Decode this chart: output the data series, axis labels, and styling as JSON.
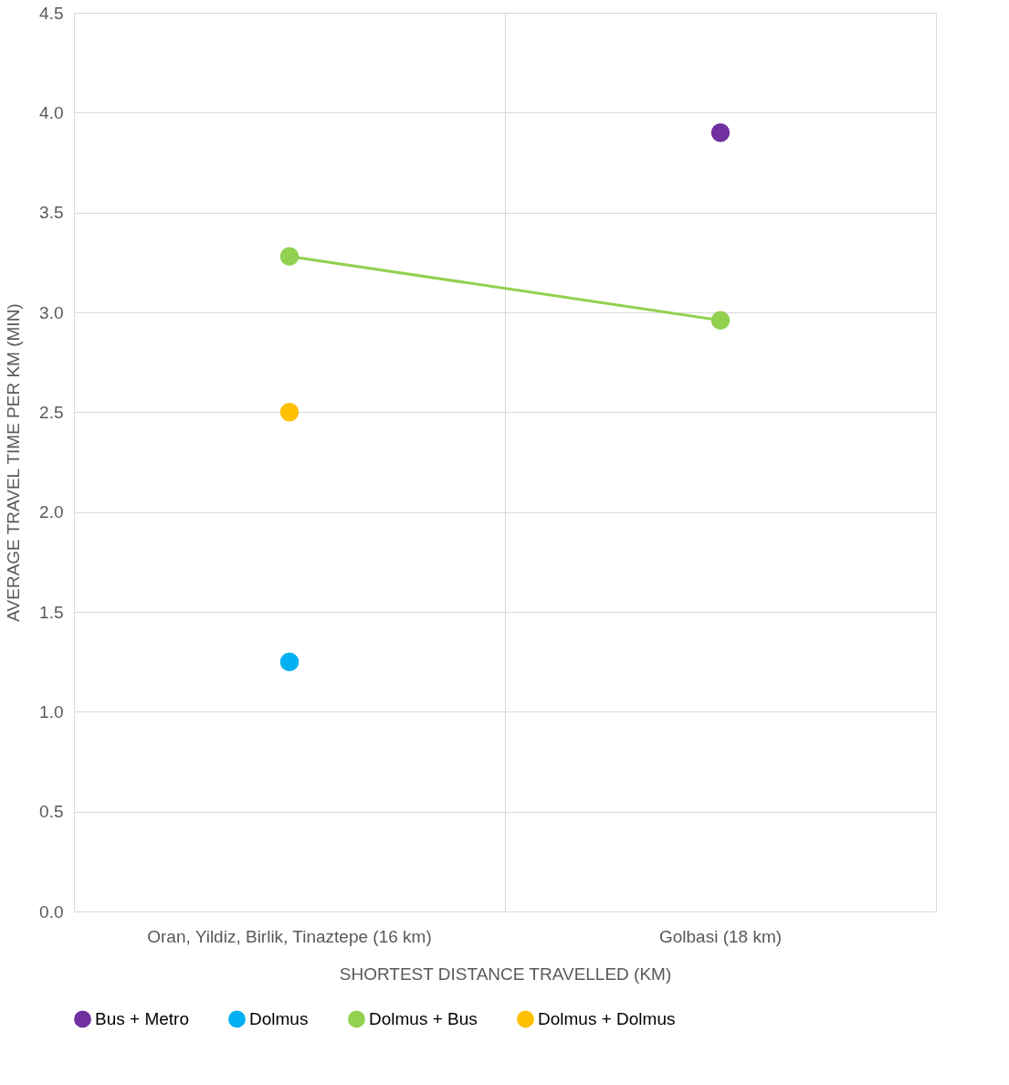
{
  "chart_data": {
    "type": "line",
    "xlabel": "SHORTEST DISTANCE TRAVELLED (KM)",
    "ylabel": "AVERAGE TRAVEL TIME  PER KM (MIN)",
    "categories": [
      "Oran, Yildiz, Birlik, Tinaztepe (16 km)",
      "Golbasi (18 km)"
    ],
    "series": [
      {
        "name": "Bus + Metro",
        "color": "#7030a0",
        "values": [
          null,
          3.9
        ]
      },
      {
        "name": "Dolmus",
        "color": "#00b0f0",
        "values": [
          1.25,
          null
        ]
      },
      {
        "name": "Dolmus + Bus",
        "color": "#92d050",
        "values": [
          3.28,
          2.96
        ]
      },
      {
        "name": "Dolmus + Dolmus",
        "color": "#ffc000",
        "values": [
          2.5,
          null
        ]
      }
    ],
    "ylim": [
      0,
      4.5
    ],
    "yticks": [
      {
        "value": 0,
        "label": "0.0"
      },
      {
        "value": 0.5,
        "label": "0.5"
      },
      {
        "value": 1,
        "label": "1.0"
      },
      {
        "value": 1.5,
        "label": "1.5"
      },
      {
        "value": 2,
        "label": "2.0"
      },
      {
        "value": 2.5,
        "label": "2.5"
      },
      {
        "value": 3,
        "label": "3.0"
      },
      {
        "value": 3.5,
        "label": "3.5"
      },
      {
        "value": 4,
        "label": "4.0"
      },
      {
        "value": 4.5,
        "label": "4.5"
      }
    ],
    "grid": true,
    "legend": "bottom",
    "marker": "circle",
    "line_style": "solid"
  }
}
